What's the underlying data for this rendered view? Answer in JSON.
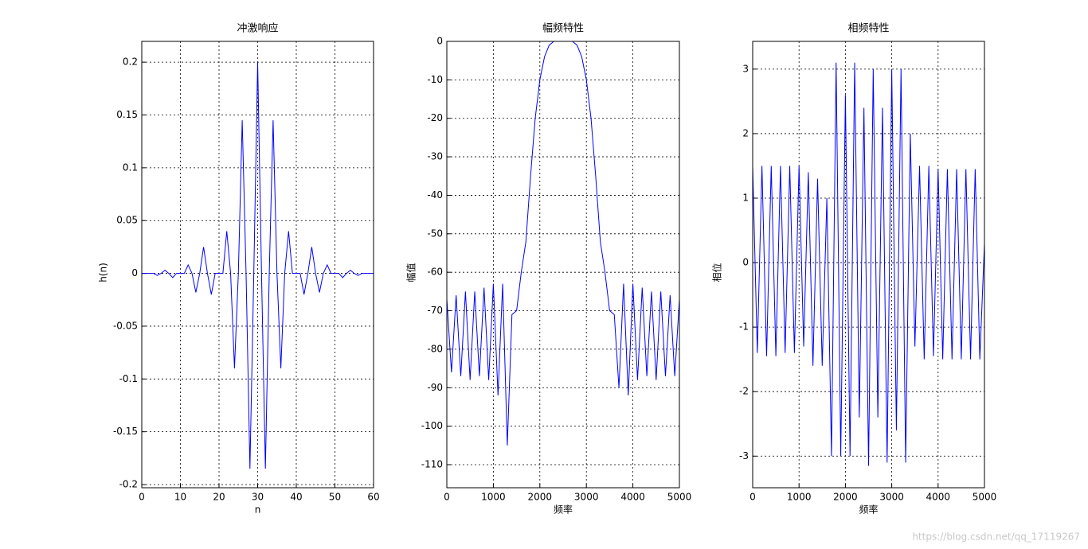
{
  "chart_data": [
    {
      "type": "line",
      "title": "冲激响应",
      "xlabel": "n",
      "ylabel": "h(n)",
      "color": "#0000ff",
      "grid": true,
      "x": [
        0,
        1,
        2,
        3,
        4,
        5,
        6,
        7,
        8,
        9,
        10,
        11,
        12,
        13,
        14,
        15,
        16,
        17,
        18,
        19,
        20,
        21,
        22,
        23,
        24,
        25,
        26,
        27,
        28,
        29,
        30,
        31,
        32,
        33,
        34,
        35,
        36,
        37,
        38,
        39,
        40,
        41,
        42,
        43,
        44,
        45,
        46,
        47,
        48,
        49,
        50,
        51,
        52,
        53,
        54,
        55,
        56,
        57,
        58,
        59,
        60
      ],
      "values": [
        0,
        0,
        0,
        0,
        -0.002,
        0,
        0.003,
        0,
        -0.004,
        0,
        0,
        0,
        0.008,
        0,
        -0.018,
        0,
        0.025,
        0,
        -0.02,
        0,
        0,
        0,
        0.04,
        0,
        -0.09,
        0,
        0.145,
        0,
        -0.185,
        0,
        0.2,
        0,
        -0.185,
        0,
        0.145,
        0,
        -0.09,
        0,
        0.04,
        0,
        0,
        0,
        -0.02,
        0,
        0.025,
        0,
        -0.018,
        0,
        0.008,
        0,
        0,
        0,
        -0.004,
        0,
        0.003,
        0,
        -0.002,
        0,
        0,
        0,
        0
      ],
      "xlim": [
        0,
        60
      ],
      "xticks": [
        0,
        10,
        20,
        30,
        40,
        50,
        60
      ],
      "ylim": [
        -0.203,
        0.2197
      ],
      "yticks": [
        -0.2,
        -0.15,
        -0.1,
        -0.05,
        0,
        0.05,
        0.1,
        0.15,
        0.2
      ]
    },
    {
      "type": "line",
      "title": "幅频特性",
      "xlabel": "频率",
      "ylabel": "幅值",
      "color": "#0000ff",
      "grid": true,
      "x": [
        0,
        100,
        200,
        300,
        400,
        500,
        600,
        700,
        800,
        900,
        1000,
        1100,
        1200,
        1300,
        1400,
        1500,
        1600,
        1700,
        1800,
        1900,
        2000,
        2100,
        2200,
        2300,
        2400,
        2500,
        2600,
        2700,
        2800,
        2900,
        3000,
        3100,
        3200,
        3300,
        3400,
        3500,
        3600,
        3700,
        3800,
        3900,
        4000,
        4100,
        4200,
        4300,
        4400,
        4500,
        4600,
        4700,
        4800,
        4900,
        5000
      ],
      "values": [
        -67,
        -86,
        -66,
        -87,
        -65,
        -88,
        -65,
        -87,
        -64,
        -88,
        -63,
        -92,
        -63,
        -105,
        -71,
        -70,
        -60,
        -52,
        -35,
        -20,
        -10,
        -4,
        -1,
        0,
        0,
        0,
        0,
        0,
        -1,
        -4,
        -10,
        -20,
        -35,
        -52,
        -60,
        -70,
        -71,
        -90,
        -63,
        -92,
        -63,
        -88,
        -64,
        -87,
        -65,
        -88,
        -65,
        -87,
        -66,
        -87,
        -67
      ],
      "xlim": [
        0,
        5000
      ],
      "xticks": [
        0,
        1000,
        2000,
        3000,
        4000,
        5000
      ],
      "ylim": [
        -116,
        0
      ],
      "yticks": [
        -110,
        -100,
        -90,
        -80,
        -70,
        -60,
        -50,
        -40,
        -30,
        -20,
        -10,
        0
      ]
    },
    {
      "type": "line",
      "title": "相频特性",
      "xlabel": "频率",
      "ylabel": "相位",
      "color": "#0000ff",
      "grid": true,
      "x": [
        0,
        100,
        200,
        300,
        400,
        500,
        600,
        700,
        800,
        900,
        1000,
        1100,
        1200,
        1300,
        1400,
        1500,
        1600,
        1700,
        1800,
        1900,
        2000,
        2100,
        2200,
        2300,
        2400,
        2500,
        2600,
        2700,
        2800,
        2900,
        3000,
        3100,
        3200,
        3300,
        3400,
        3500,
        3600,
        3700,
        3800,
        3900,
        4000,
        4100,
        4200,
        4300,
        4400,
        4500,
        4600,
        4700,
        4800,
        4900,
        5000
      ],
      "values": [
        1.5,
        -1.4,
        1.5,
        -1.45,
        1.5,
        -1.45,
        1.5,
        -1.4,
        1.5,
        -1.4,
        1.5,
        -1.3,
        1.4,
        -1.6,
        1.3,
        -1.6,
        1.0,
        -3.0,
        3.1,
        -3.0,
        2.6,
        -3.0,
        3.1,
        -2.4,
        2.4,
        -3.15,
        3.0,
        -2.4,
        2.4,
        -3.1,
        3.0,
        -2.6,
        3.0,
        -3.1,
        2.0,
        -1.3,
        1.5,
        -1.5,
        1.5,
        -1.45,
        1.45,
        -1.5,
        1.45,
        -1.5,
        1.45,
        -1.5,
        1.45,
        -1.5,
        1.45,
        -1.5,
        0.3
      ],
      "xlim": [
        0,
        5000
      ],
      "xticks": [
        0,
        1000,
        2000,
        3000,
        4000,
        5000
      ],
      "ylim": [
        -3.49,
        3.43
      ],
      "yticks": [
        -3,
        -2,
        -1,
        0,
        1,
        2,
        3
      ]
    }
  ],
  "watermark": "https://blog.csdn.net/qq_17119267"
}
